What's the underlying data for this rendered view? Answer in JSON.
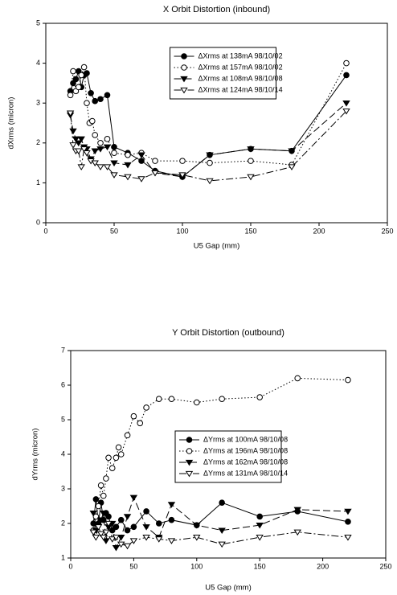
{
  "chart_data": [
    {
      "type": "line",
      "title": "X Orbit Distortion (inbound)",
      "x_label": "U5 Gap (mm)",
      "y_label": "dXrms (micron)",
      "xlim": [
        0,
        250
      ],
      "xticks": [
        0,
        50,
        100,
        150,
        200,
        250
      ],
      "ylim": [
        0,
        5
      ],
      "yticks": [
        0,
        1,
        2,
        3,
        4,
        5
      ],
      "grid": false,
      "legend": "upper center",
      "series": [
        {
          "name": "ΔXrms at 138mA  98/10/02",
          "color": "#000000",
          "marker": "filled-circle",
          "linestyle": "solid",
          "x": [
            18,
            20,
            22,
            24,
            26,
            28,
            30,
            33,
            36,
            40,
            45,
            50,
            60,
            70,
            80,
            100,
            120,
            150,
            180,
            220
          ],
          "values": [
            3.3,
            3.5,
            3.6,
            3.8,
            3.4,
            3.7,
            3.75,
            3.25,
            3.05,
            3.1,
            3.2,
            1.9,
            1.75,
            1.55,
            1.3,
            1.15,
            1.7,
            1.85,
            1.8,
            3.7
          ]
        },
        {
          "name": "ΔXrms at 157mA  98/10/02",
          "color": "#000000",
          "marker": "open-circle",
          "linestyle": "dotted",
          "x": [
            18,
            20,
            22,
            24,
            26,
            28,
            30,
            32,
            34,
            36,
            40,
            45,
            50,
            60,
            70,
            80,
            100,
            120,
            150,
            180,
            220
          ],
          "values": [
            3.2,
            3.8,
            3.3,
            3.4,
            3.7,
            3.9,
            3.0,
            2.5,
            2.55,
            2.2,
            2.0,
            2.1,
            1.75,
            1.7,
            1.75,
            1.55,
            1.55,
            1.5,
            1.55,
            1.45,
            4.0
          ]
        },
        {
          "name": "ΔXrms at 108mA  98/10/08",
          "color": "#000000",
          "marker": "filled-triangle-down",
          "linestyle": "dashed",
          "x": [
            18,
            20,
            22,
            24,
            26,
            28,
            30,
            33,
            36,
            40,
            45,
            50,
            60,
            70,
            80,
            100,
            120,
            150,
            180,
            220
          ],
          "values": [
            2.7,
            2.3,
            2.1,
            2.0,
            2.1,
            1.9,
            1.85,
            1.6,
            1.8,
            1.85,
            1.9,
            1.5,
            1.45,
            1.7,
            1.25,
            1.15,
            1.7,
            1.85,
            1.8,
            3.0
          ]
        },
        {
          "name": "ΔXrms at 124mA  98/10/14",
          "color": "#000000",
          "marker": "open-triangle-down",
          "linestyle": "dashdot",
          "x": [
            18,
            20,
            22,
            24,
            26,
            28,
            30,
            33,
            36,
            40,
            45,
            50,
            60,
            70,
            80,
            100,
            120,
            150,
            180,
            220
          ],
          "values": [
            2.75,
            1.95,
            1.8,
            1.8,
            1.4,
            1.85,
            1.75,
            1.55,
            1.5,
            1.4,
            1.4,
            1.2,
            1.15,
            1.1,
            1.25,
            1.2,
            1.05,
            1.15,
            1.4,
            2.8
          ]
        }
      ]
    },
    {
      "type": "line",
      "title": "Y Orbit Distortion (outbound)",
      "x_label": "U5 Gap (mm)",
      "y_label": "dYrms (micron)",
      "xlim": [
        0,
        250
      ],
      "xticks": [
        0,
        50,
        100,
        150,
        200,
        250
      ],
      "ylim": [
        1,
        7
      ],
      "yticks": [
        1,
        2,
        3,
        4,
        5,
        6,
        7
      ],
      "grid": false,
      "legend": "center",
      "series": [
        {
          "name": "ΔYrms at 100mA 98/10/08",
          "color": "#000000",
          "marker": "filled-circle",
          "linestyle": "solid",
          "x": [
            18,
            20,
            22,
            24,
            26,
            28,
            30,
            33,
            36,
            40,
            45,
            50,
            60,
            70,
            80,
            100,
            120,
            150,
            180,
            220
          ],
          "values": [
            2.0,
            2.7,
            2.0,
            2.6,
            2.1,
            2.3,
            2.2,
            1.8,
            1.9,
            2.1,
            1.8,
            1.9,
            2.35,
            2.0,
            2.1,
            1.95,
            2.6,
            2.2,
            2.35,
            2.05
          ]
        },
        {
          "name": "ΔYrms at 196mA 98/10/08",
          "color": "#000000",
          "marker": "open-circle",
          "linestyle": "dotted",
          "x": [
            18,
            20,
            22,
            24,
            26,
            28,
            30,
            33,
            36,
            38,
            40,
            45,
            50,
            55,
            60,
            70,
            80,
            100,
            120,
            150,
            180,
            220
          ],
          "values": [
            1.8,
            2.2,
            2.5,
            3.1,
            2.8,
            3.3,
            3.9,
            3.6,
            3.9,
            4.2,
            4.0,
            4.55,
            5.1,
            4.9,
            5.35,
            5.6,
            5.6,
            5.5,
            5.6,
            5.65,
            6.2,
            6.15
          ]
        },
        {
          "name": "ΔYrms at 162mA 98/10/08",
          "color": "#000000",
          "marker": "filled-triangle-down",
          "linestyle": "dashed",
          "x": [
            18,
            20,
            22,
            24,
            26,
            28,
            30,
            33,
            36,
            40,
            45,
            50,
            60,
            70,
            80,
            100,
            120,
            150,
            180,
            220
          ],
          "values": [
            2.3,
            1.8,
            1.9,
            2.1,
            2.3,
            1.5,
            1.9,
            2.0,
            1.3,
            1.6,
            2.2,
            2.75,
            1.9,
            1.6,
            2.55,
            1.95,
            1.8,
            1.95,
            2.4,
            2.35
          ]
        },
        {
          "name": "ΔYrms at 131mA 98/10/14",
          "color": "#000000",
          "marker": "open-triangle-down",
          "linestyle": "dashdot",
          "x": [
            18,
            20,
            22,
            24,
            26,
            28,
            30,
            33,
            36,
            40,
            45,
            50,
            60,
            70,
            80,
            100,
            120,
            150,
            180,
            220
          ],
          "values": [
            1.75,
            1.6,
            1.9,
            1.7,
            1.6,
            1.75,
            2.0,
            1.55,
            1.6,
            1.4,
            1.35,
            1.5,
            1.6,
            1.55,
            1.5,
            1.6,
            1.4,
            1.6,
            1.75,
            1.6
          ]
        }
      ]
    }
  ]
}
